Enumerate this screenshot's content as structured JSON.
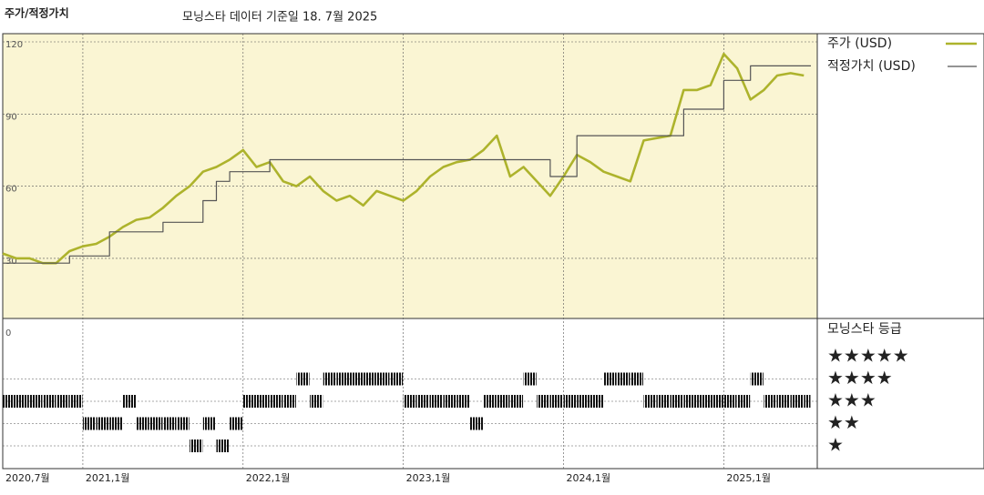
{
  "chart_data": {
    "type": "line",
    "title": "주가/적정가치",
    "subtitle": "모닝스타 데이터 기준일 18. 7월 2025",
    "x": [
      "2020-07",
      "2020-08",
      "2020-09",
      "2020-10",
      "2020-11",
      "2020-12",
      "2021-01",
      "2021-02",
      "2021-03",
      "2021-04",
      "2021-05",
      "2021-06",
      "2021-07",
      "2021-08",
      "2021-09",
      "2021-10",
      "2021-11",
      "2021-12",
      "2022-01",
      "2022-02",
      "2022-03",
      "2022-04",
      "2022-05",
      "2022-06",
      "2022-07",
      "2022-08",
      "2022-09",
      "2022-10",
      "2022-11",
      "2022-12",
      "2023-01",
      "2023-02",
      "2023-03",
      "2023-04",
      "2023-05",
      "2023-06",
      "2023-07",
      "2023-08",
      "2023-09",
      "2023-10",
      "2023-11",
      "2023-12",
      "2024-01",
      "2024-02",
      "2024-03",
      "2024-04",
      "2024-05",
      "2024-06",
      "2024-07",
      "2024-08",
      "2024-09",
      "2024-10",
      "2024-11",
      "2024-12",
      "2025-01",
      "2025-02",
      "2025-03",
      "2025-04",
      "2025-05",
      "2025-06",
      "2025-07"
    ],
    "series": [
      {
        "name": "주가 (USD)",
        "color": "#adb32c",
        "values": [
          32,
          30,
          30,
          28,
          28,
          33,
          35,
          36,
          39,
          43,
          46,
          47,
          51,
          56,
          60,
          66,
          68,
          71,
          75,
          68,
          70,
          62,
          60,
          64,
          58,
          54,
          56,
          52,
          58,
          56,
          54,
          58,
          64,
          68,
          70,
          71,
          75,
          81,
          64,
          68,
          62,
          56,
          64,
          73,
          70,
          66,
          64,
          62,
          79,
          80,
          81,
          100,
          100,
          102,
          115,
          109,
          96,
          100,
          106,
          107,
          106
        ]
      },
      {
        "name": "적정가치 (USD)",
        "color": "#555555",
        "step": true,
        "values": [
          28,
          28,
          28,
          28,
          28,
          31,
          31,
          31,
          41,
          41,
          41,
          41,
          45,
          45,
          45,
          54,
          62,
          66,
          66,
          66,
          71,
          71,
          71,
          71,
          71,
          71,
          71,
          71,
          71,
          71,
          71,
          71,
          71,
          71,
          71,
          71,
          71,
          71,
          71,
          71,
          71,
          64,
          64,
          81,
          81,
          81,
          81,
          81,
          81,
          81,
          81,
          92,
          92,
          92,
          104,
          104,
          110,
          110,
          110,
          110,
          110
        ]
      }
    ],
    "xlim": [
      "2020-07",
      "2025-08"
    ],
    "xticks": [
      {
        "value": "2020-07",
        "label": "2020,7월"
      },
      {
        "value": "2021-01",
        "label": "2021,1월"
      },
      {
        "value": "2022-01",
        "label": "2022,1월"
      },
      {
        "value": "2023-01",
        "label": "2023,1월"
      },
      {
        "value": "2024-01",
        "label": "2024,1월"
      },
      {
        "value": "2025-01",
        "label": "2025,1월"
      }
    ],
    "ylim": [
      5,
      123.4
    ],
    "yticks": [
      0,
      30,
      60,
      90,
      120
    ],
    "grid": true,
    "rating_title": "모닝스타 등급",
    "rating_labels": [
      "★★★★★",
      "★★★★",
      "★★★",
      "★★",
      "★"
    ],
    "rating_levels": [
      5,
      4,
      3,
      2,
      1
    ],
    "ratings": [
      3,
      3,
      3,
      3,
      3,
      3,
      2,
      2,
      2,
      3,
      2,
      2,
      2,
      2,
      1,
      2,
      1,
      2,
      3,
      3,
      3,
      3,
      4,
      3,
      4,
      4,
      4,
      4,
      4,
      4,
      3,
      3,
      3,
      3,
      3,
      2,
      3,
      3,
      3,
      4,
      3,
      3,
      3,
      3,
      3,
      4,
      4,
      4,
      3,
      3,
      3,
      3,
      3,
      3,
      3,
      3,
      4,
      3,
      3,
      3,
      3
    ]
  }
}
